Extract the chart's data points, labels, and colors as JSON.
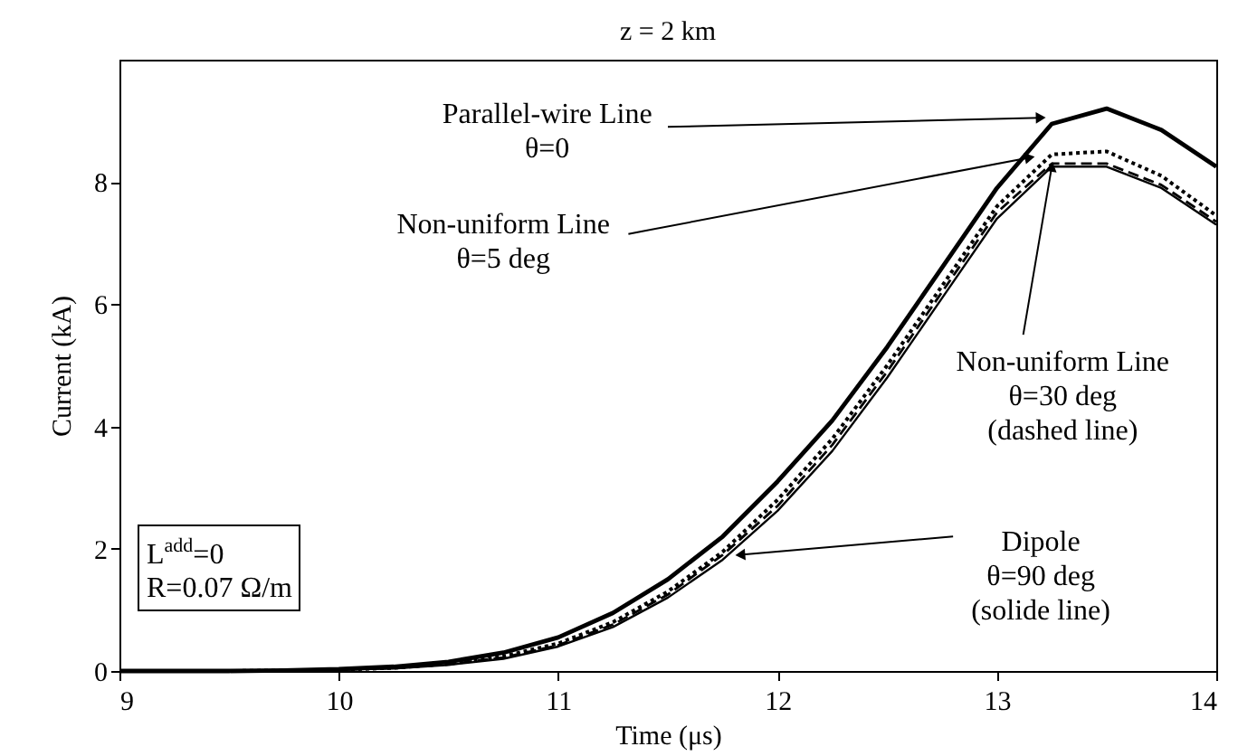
{
  "chart_data": {
    "type": "line",
    "title": "z = 2 km",
    "xlabel": "Time (μs)",
    "ylabel": "Current (kA)",
    "x": [
      9,
      9.25,
      9.5,
      9.75,
      10,
      10.25,
      10.5,
      10.75,
      11,
      11.25,
      11.5,
      11.75,
      12,
      12.25,
      12.5,
      12.75,
      13,
      13.25,
      13.5,
      13.75,
      14
    ],
    "series": [
      {
        "color": "#000000",
        "line_style": "solid",
        "values": [
          0,
          0,
          0,
          0.01,
          0.03,
          0.07,
          0.15,
          0.3,
          0.55,
          0.95,
          1.5,
          2.2,
          3.1,
          4.1,
          5.3,
          6.6,
          7.9,
          8.95,
          9.2,
          8.85,
          8.25
        ]
      },
      {
        "color": "#000000",
        "line_style": "dotted",
        "values": [
          0,
          0,
          0,
          0.01,
          0.02,
          0.05,
          0.12,
          0.24,
          0.45,
          0.8,
          1.3,
          1.95,
          2.8,
          3.8,
          5.0,
          6.3,
          7.6,
          8.45,
          8.5,
          8.1,
          7.45
        ]
      },
      {
        "color": "#000000",
        "line_style": "dashed",
        "values": [
          0,
          0,
          0,
          0.01,
          0.02,
          0.05,
          0.11,
          0.22,
          0.42,
          0.76,
          1.25,
          1.9,
          2.7,
          3.7,
          4.9,
          6.2,
          7.5,
          8.3,
          8.3,
          7.95,
          7.35
        ]
      },
      {
        "color": "#000000",
        "line_style": "solid",
        "values": [
          0,
          0,
          0,
          0.01,
          0.02,
          0.04,
          0.1,
          0.2,
          0.4,
          0.72,
          1.2,
          1.82,
          2.62,
          3.6,
          4.8,
          6.1,
          7.4,
          8.25,
          8.25,
          7.9,
          7.3
        ]
      }
    ],
    "xlim": [
      9,
      14
    ],
    "xticks": [
      9,
      10,
      11,
      12,
      13,
      14
    ],
    "ylim": [
      0,
      10
    ],
    "yticks": [
      0,
      2,
      4,
      6,
      8
    ],
    "grid": false,
    "legend": false,
    "annotations": [
      {
        "text": "Parallel-wire Line\nθ=0",
        "x": 13.2,
        "y": 9.05
      },
      {
        "text": "Non-uniform Line\nθ=5 deg",
        "x": 13.15,
        "y": 8.4
      },
      {
        "text": "Non-uniform Line\nθ=30 deg\n(dashed line)",
        "x": 13.25,
        "y": 8.25
      },
      {
        "text": "Dipole\nθ=90 deg\n(solide line)",
        "x": 11.83,
        "y": 1.9
      },
      "L$^{add}$=0\nR=0.07 Ω/m"
    ]
  }
}
